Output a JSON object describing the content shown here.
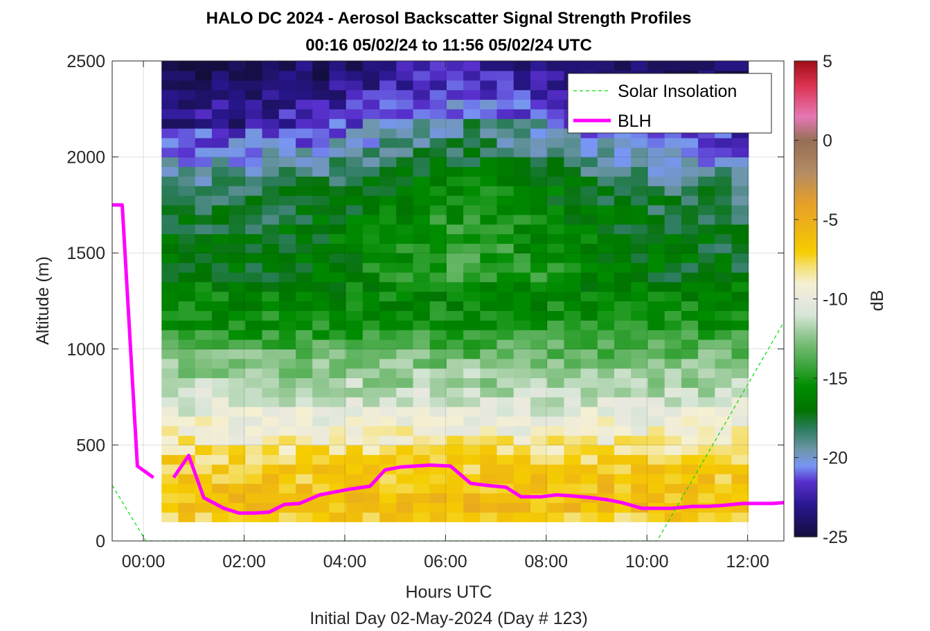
{
  "chart_data": {
    "type": "heatmap",
    "title": "HALO DC 2024 - Aerosol Backscatter Signal Strength Profiles",
    "subtitle": "00:16 05/02/24 to 11:56 05/02/24  UTC",
    "xlabel": "Hours UTC",
    "xlabel2": "Initial Day 02-May-2024 (Day # 123)",
    "ylabel": "Altitude (m)",
    "colorbar_label": "dB",
    "xlim": [
      -0.62,
      12.72
    ],
    "ylim": [
      0,
      2500
    ],
    "x_ticks": [
      0,
      2,
      4,
      6,
      8,
      10,
      12
    ],
    "x_tick_labels": [
      "00:00",
      "02:00",
      "04:00",
      "06:00",
      "08:00",
      "10:00",
      "12:00"
    ],
    "y_ticks": [
      0,
      500,
      1000,
      1500,
      2000,
      2500
    ],
    "y_tick_labels": [
      "0",
      "500",
      "1000",
      "1500",
      "2000",
      "2500"
    ],
    "clim": [
      -25,
      5
    ],
    "colorbar_ticks": [
      -25,
      -20,
      -15,
      -10,
      -5,
      0,
      5
    ],
    "colorbar_tick_labels": [
      "-25",
      "-20",
      "-15",
      "-10",
      "-5",
      "0",
      "5"
    ],
    "grid": true,
    "legend_location": "top-right",
    "legend": [
      {
        "name": "Solar Insolation",
        "color": "#00dd00",
        "style": "dashed"
      },
      {
        "name": "BLH",
        "color": "#ff00ff",
        "style": "solid"
      }
    ],
    "heatmap": {
      "x_start": 0.36,
      "x_step": 0.333,
      "columns": 35,
      "y_start": 100,
      "y_step": 50,
      "rows": 48,
      "profiles_db": [
        {
          "alt": 100,
          "db": -8
        },
        {
          "alt": 150,
          "db": -6
        },
        {
          "alt": 300,
          "db": -6.5
        },
        {
          "alt": 450,
          "db": -7.5
        },
        {
          "alt": 550,
          "db": -9
        },
        {
          "alt": 700,
          "db": -10.5
        },
        {
          "alt": 850,
          "db": -12
        },
        {
          "alt": 1000,
          "db": -13.5
        },
        {
          "alt": 1100,
          "db": -15
        },
        {
          "alt": 1300,
          "db": -16
        },
        {
          "alt": 1600,
          "db": -16.5
        },
        {
          "alt": 1850,
          "db": -17.5
        },
        {
          "alt": 2100,
          "db": -20.5
        },
        {
          "alt": 2350,
          "db": -22.5
        },
        {
          "alt": 2500,
          "db": -23.5
        }
      ]
    },
    "series": [
      {
        "name": "BLH",
        "x": [
          -0.62,
          -0.42,
          -0.12,
          0.2,
          null,
          0.6,
          0.9,
          1.2,
          1.6,
          1.9,
          2.2,
          2.5,
          2.8,
          3.1,
          3.5,
          3.8,
          4.1,
          4.5,
          4.8,
          5.1,
          5.4,
          5.7,
          6.1,
          6.5,
          6.8,
          7.2,
          7.5,
          7.9,
          8.2,
          8.5,
          8.9,
          9.2,
          9.5,
          9.9,
          10.2,
          10.5,
          10.9,
          11.2,
          11.5,
          11.9,
          12.2,
          12.5,
          12.72
        ],
        "y": [
          1750,
          1750,
          390,
          330,
          null,
          330,
          445,
          225,
          170,
          145,
          145,
          150,
          190,
          195,
          240,
          255,
          270,
          285,
          370,
          385,
          390,
          395,
          390,
          300,
          290,
          280,
          230,
          230,
          240,
          235,
          225,
          215,
          200,
          170,
          170,
          170,
          180,
          180,
          185,
          195,
          195,
          195,
          200
        ]
      },
      {
        "name": "Solar Insolation",
        "x": [
          -0.62,
          0.05,
          10.2,
          12.72
        ],
        "y": [
          290,
          0,
          0,
          1140
        ]
      }
    ]
  }
}
